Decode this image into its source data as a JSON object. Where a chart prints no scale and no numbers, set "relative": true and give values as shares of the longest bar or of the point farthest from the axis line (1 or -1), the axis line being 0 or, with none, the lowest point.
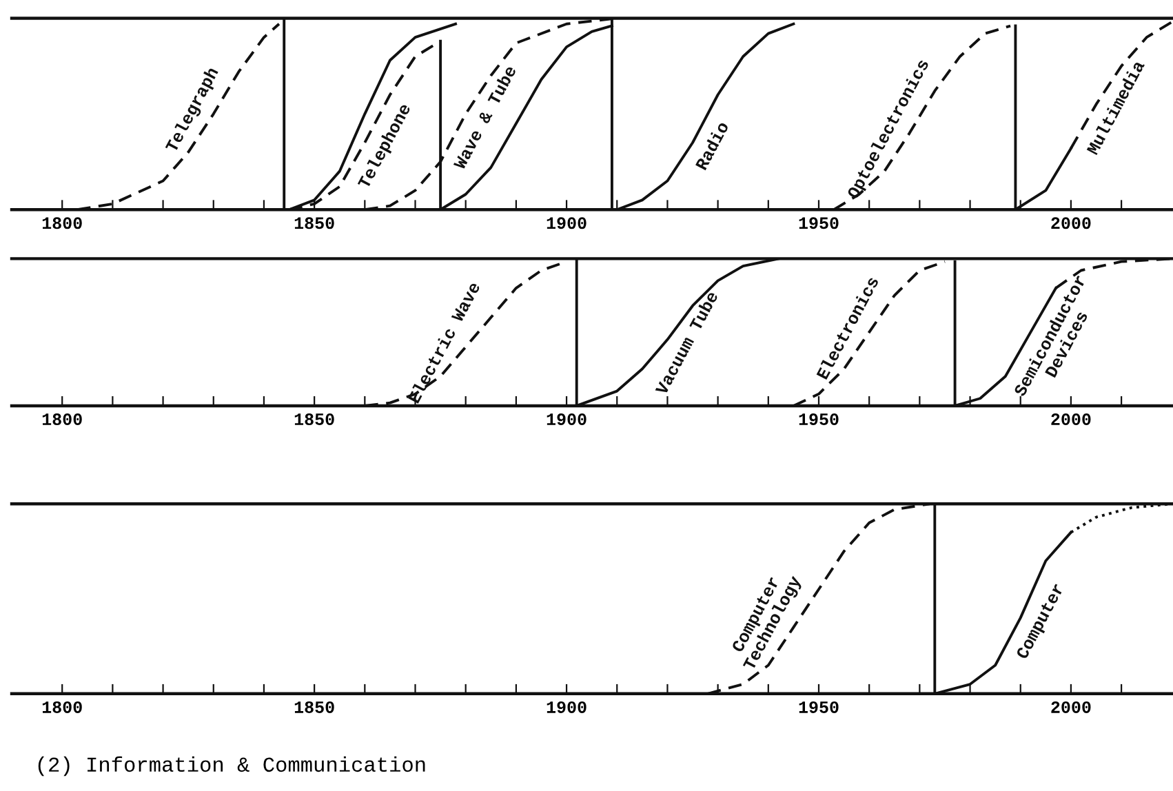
{
  "chart_data": [
    {
      "type": "line",
      "relative": true,
      "tick_labels": "x",
      "grid": false,
      "legend": false,
      "color": "#111111",
      "xlim": [
        1790,
        2020
      ],
      "xticks": [
        1800,
        {
          "value": 1810,
          "label": null
        },
        {
          "value": 1820,
          "label": null
        },
        {
          "value": 1830,
          "label": null
        },
        {
          "value": 1840,
          "label": null
        },
        1850,
        {
          "value": 1860,
          "label": null
        },
        {
          "value": 1870,
          "label": null
        },
        {
          "value": 1880,
          "label": null
        },
        {
          "value": 1890,
          "label": null
        },
        1900,
        {
          "value": 1910,
          "label": null
        },
        {
          "value": 1920,
          "label": null
        },
        {
          "value": 1930,
          "label": null
        },
        {
          "value": 1940,
          "label": null
        },
        1950,
        {
          "value": 1960,
          "label": null
        },
        {
          "value": 1970,
          "label": null
        },
        {
          "value": 1980,
          "label": null
        },
        {
          "value": 1990,
          "label": null
        },
        2000,
        {
          "value": 2010,
          "label": null
        }
      ],
      "series": [
        {
          "name": "Telegraph",
          "line_style": "dashed",
          "x": [
            1803,
            1810,
            1820,
            1825,
            1830,
            1835,
            1840,
            1843
          ],
          "values": [
            0,
            0.03,
            0.15,
            0.3,
            0.5,
            0.72,
            0.9,
            0.97
          ]
        },
        {
          "line_style": "solid",
          "x": [
            1844,
            1844
          ],
          "values": [
            0,
            1
          ]
        },
        {
          "line_style": "solid",
          "x": [
            1845,
            1850,
            1855,
            1860,
            1865,
            1870,
            1878
          ],
          "values": [
            0,
            0.05,
            0.2,
            0.5,
            0.78,
            0.9,
            0.97
          ]
        },
        {
          "name": "Telephone",
          "line_style": "dashed",
          "x": [
            1845,
            1850,
            1855,
            1860,
            1865,
            1870,
            1875
          ],
          "values": [
            0,
            0.03,
            0.12,
            0.35,
            0.6,
            0.8,
            0.88
          ]
        },
        {
          "line_style": "solid",
          "x": [
            1875,
            1875
          ],
          "values": [
            0,
            0.88
          ]
        },
        {
          "name": "Wave & Tube",
          "line_style": "dashed",
          "x": [
            1860,
            1865,
            1870,
            1875,
            1880,
            1885,
            1890,
            1900,
            1910
          ],
          "values": [
            0,
            0.02,
            0.1,
            0.25,
            0.5,
            0.7,
            0.87,
            0.97,
            1.0
          ]
        },
        {
          "line_style": "solid",
          "x": [
            1875,
            1880,
            1885,
            1890,
            1895,
            1900,
            1905,
            1909
          ],
          "values": [
            0,
            0.08,
            0.22,
            0.45,
            0.68,
            0.85,
            0.93,
            0.96
          ]
        },
        {
          "line_style": "solid",
          "x": [
            1909,
            1909
          ],
          "values": [
            0,
            1
          ]
        },
        {
          "name": "Radio",
          "line_style": "solid",
          "x": [
            1910,
            1915,
            1920,
            1925,
            1930,
            1935,
            1940,
            1945
          ],
          "values": [
            0,
            0.05,
            0.15,
            0.35,
            0.6,
            0.8,
            0.92,
            0.97
          ]
        },
        {
          "name": "Optoelectronics",
          "line_style": "dashed",
          "x": [
            1953,
            1958,
            1963,
            1968,
            1973,
            1978,
            1983,
            1988
          ],
          "values": [
            0,
            0.08,
            0.2,
            0.4,
            0.62,
            0.8,
            0.92,
            0.96
          ]
        },
        {
          "line_style": "solid",
          "x": [
            1989,
            1989
          ],
          "values": [
            0,
            0.96
          ]
        },
        {
          "line_style": "solid",
          "x": [
            1989,
            1995,
            2000
          ],
          "values": [
            0,
            0.1,
            0.32
          ]
        },
        {
          "name": "Multimedia",
          "line_style": "dashed",
          "x": [
            2000,
            2005,
            2010,
            2015,
            2020
          ],
          "values": [
            0.32,
            0.55,
            0.75,
            0.9,
            0.98
          ]
        }
      ]
    },
    {
      "type": "line",
      "relative": true,
      "tick_labels": "x",
      "grid": false,
      "legend": false,
      "color": "#111111",
      "xlim": [
        1790,
        2020
      ],
      "xticks": [
        1800,
        {
          "value": 1810,
          "label": null
        },
        {
          "value": 1820,
          "label": null
        },
        {
          "value": 1830,
          "label": null
        },
        {
          "value": 1840,
          "label": null
        },
        1850,
        {
          "value": 1860,
          "label": null
        },
        {
          "value": 1870,
          "label": null
        },
        {
          "value": 1880,
          "label": null
        },
        {
          "value": 1890,
          "label": null
        },
        1900,
        {
          "value": 1910,
          "label": null
        },
        {
          "value": 1920,
          "label": null
        },
        {
          "value": 1930,
          "label": null
        },
        {
          "value": 1940,
          "label": null
        },
        1950,
        {
          "value": 1960,
          "label": null
        },
        {
          "value": 1970,
          "label": null
        },
        {
          "value": 1980,
          "label": null
        },
        {
          "value": 1990,
          "label": null
        },
        2000,
        {
          "value": 2010,
          "label": null
        }
      ],
      "series": [
        {
          "name": "Electric Wave",
          "line_style": "dashed",
          "x": [
            1860,
            1865,
            1870,
            1875,
            1880,
            1885,
            1890,
            1895,
            1900
          ],
          "values": [
            0,
            0.02,
            0.08,
            0.2,
            0.4,
            0.6,
            0.8,
            0.92,
            0.98
          ]
        },
        {
          "line_style": "solid",
          "x": [
            1902,
            1902
          ],
          "values": [
            0,
            1
          ]
        },
        {
          "name": "Vacuum Tube",
          "line_style": "solid",
          "x": [
            1902,
            1910,
            1915,
            1920,
            1925,
            1930,
            1935,
            1942
          ],
          "values": [
            0,
            0.1,
            0.25,
            0.45,
            0.68,
            0.85,
            0.95,
            1.0
          ]
        },
        {
          "name": "Electronics",
          "line_style": "dashed",
          "x": [
            1945,
            1950,
            1955,
            1960,
            1965,
            1970,
            1975
          ],
          "values": [
            0,
            0.08,
            0.25,
            0.5,
            0.75,
            0.92,
            0.98
          ]
        },
        {
          "line_style": "solid",
          "x": [
            1977,
            1977
          ],
          "values": [
            0,
            0.98
          ]
        },
        {
          "name": "Semiconductor\nDevices",
          "line_style": "solid",
          "x": [
            1977,
            1982,
            1987,
            1992,
            1997
          ],
          "values": [
            0,
            0.05,
            0.2,
            0.5,
            0.8
          ]
        },
        {
          "line_style": "dashed",
          "x": [
            1997,
            2002,
            2010,
            2020
          ],
          "values": [
            0.8,
            0.92,
            0.98,
            1.0
          ]
        }
      ]
    },
    {
      "type": "line",
      "relative": true,
      "tick_labels": "x",
      "grid": false,
      "legend": false,
      "color": "#111111",
      "xlim": [
        1790,
        2020
      ],
      "xticks": [
        1800,
        {
          "value": 1810,
          "label": null
        },
        {
          "value": 1820,
          "label": null
        },
        {
          "value": 1830,
          "label": null
        },
        {
          "value": 1840,
          "label": null
        },
        1850,
        {
          "value": 1860,
          "label": null
        },
        {
          "value": 1870,
          "label": null
        },
        {
          "value": 1880,
          "label": null
        },
        {
          "value": 1890,
          "label": null
        },
        1900,
        {
          "value": 1910,
          "label": null
        },
        {
          "value": 1920,
          "label": null
        },
        {
          "value": 1930,
          "label": null
        },
        {
          "value": 1940,
          "label": null
        },
        1950,
        {
          "value": 1960,
          "label": null
        },
        {
          "value": 1970,
          "label": null
        },
        {
          "value": 1980,
          "label": null
        },
        {
          "value": 1990,
          "label": null
        },
        2000,
        {
          "value": 2010,
          "label": null
        }
      ],
      "annotations": [
        "(2) Information & Communication"
      ],
      "series": [
        {
          "name": "Computer\nTechnology",
          "line_style": "dashed",
          "x": [
            1928,
            1935,
            1940,
            1945,
            1950,
            1955,
            1960,
            1965,
            1972
          ],
          "values": [
            0,
            0.05,
            0.15,
            0.35,
            0.55,
            0.75,
            0.9,
            0.97,
            1.0
          ]
        },
        {
          "line_style": "solid",
          "x": [
            1973,
            1973
          ],
          "values": [
            0,
            1
          ]
        },
        {
          "name": "Computer",
          "line_style": "solid",
          "x": [
            1973,
            1980,
            1985,
            1990,
            1995,
            2000
          ],
          "values": [
            0,
            0.05,
            0.15,
            0.4,
            0.7,
            0.85
          ]
        },
        {
          "line_style": "dotted",
          "x": [
            2000,
            2005,
            2012,
            2020
          ],
          "values": [
            0.85,
            0.93,
            0.98,
            1.0
          ]
        }
      ]
    }
  ]
}
